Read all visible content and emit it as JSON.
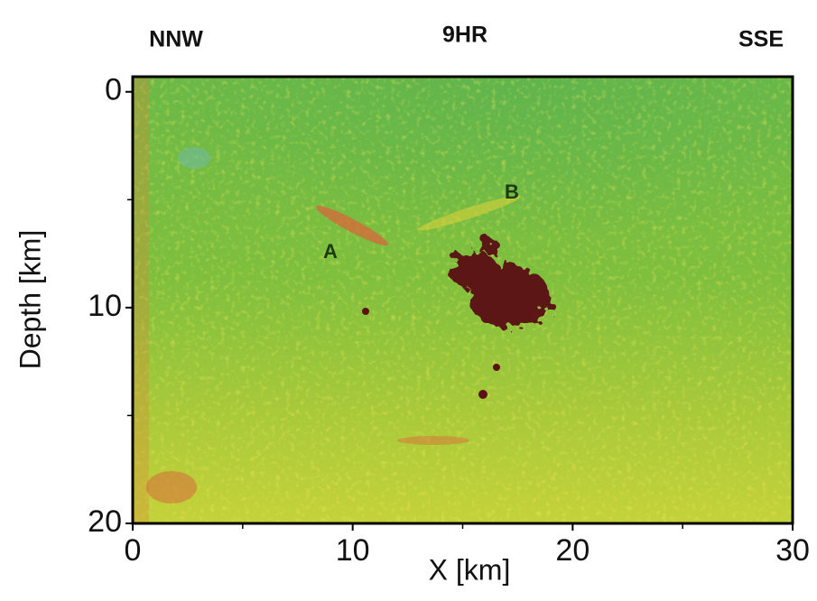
{
  "chart_data": {
    "type": "image",
    "title": "9HR",
    "left_label": "NNW",
    "right_label": "SSE",
    "xlabel": "X [km]",
    "ylabel": "Depth [km]",
    "annotations": [
      "A",
      "B"
    ],
    "xlim": [
      0,
      30
    ],
    "xticks": [
      0,
      10,
      20,
      30
    ],
    "xminor": [
      5,
      15,
      25
    ],
    "ylim": [
      -0.7,
      20
    ],
    "yticks": [
      0,
      10,
      20
    ],
    "yminor": [
      5,
      15
    ],
    "y_inverted": true
  }
}
